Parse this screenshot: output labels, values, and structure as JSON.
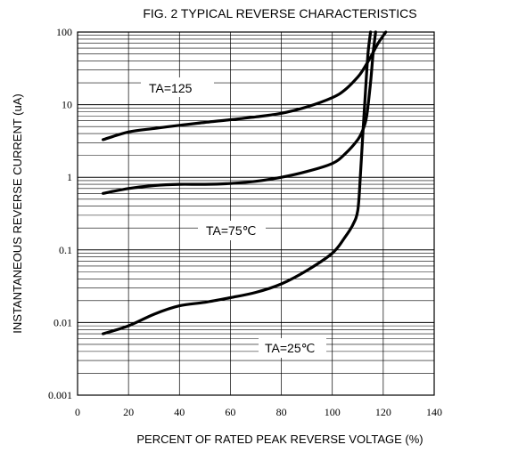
{
  "chart_data": {
    "type": "line",
    "title": "FIG. 2 TYPICAL REVERSE CHARACTERISTICS",
    "xlabel": "PERCENT OF RATED PEAK REVERSE VOLTAGE (%)",
    "ylabel": "INSTANTANEOUS REVERSE CURRENT (uA)",
    "xlim": [
      0,
      140
    ],
    "ylim": [
      0.001,
      100
    ],
    "yscale": "log",
    "grid": true,
    "x_ticks": [
      "0",
      "20",
      "40",
      "60",
      "80",
      "100",
      "120",
      "140"
    ],
    "y_ticks": [
      "100",
      "10",
      "1",
      "0.1",
      "0.01",
      "0.001"
    ],
    "series": [
      {
        "name": "TA=125",
        "x": [
          10,
          20,
          30,
          40,
          50,
          60,
          70,
          80,
          90,
          100,
          105,
          110,
          112,
          115,
          118,
          121
        ],
        "y": [
          3.3,
          4.2,
          4.7,
          5.2,
          5.7,
          6.2,
          6.8,
          7.6,
          9.3,
          12.5,
          16,
          24,
          30,
          45,
          70,
          100
        ]
      },
      {
        "name": "TA=75℃",
        "x": [
          10,
          20,
          30,
          40,
          50,
          60,
          70,
          80,
          90,
          100,
          105,
          110,
          112,
          113.5,
          115,
          116,
          117
        ],
        "y": [
          0.6,
          0.7,
          0.77,
          0.8,
          0.8,
          0.82,
          0.88,
          1.0,
          1.2,
          1.55,
          2.1,
          3.3,
          4.5,
          7,
          20,
          50,
          100
        ]
      },
      {
        "name": "TA=25℃",
        "x": [
          10,
          20,
          30,
          40,
          50,
          60,
          70,
          80,
          90,
          100,
          105,
          108,
          110,
          111,
          112,
          113,
          114,
          115
        ],
        "y": [
          0.007,
          0.009,
          0.013,
          0.017,
          0.019,
          0.022,
          0.026,
          0.034,
          0.052,
          0.09,
          0.15,
          0.22,
          0.35,
          1,
          4,
          15,
          50,
          100
        ]
      }
    ]
  }
}
